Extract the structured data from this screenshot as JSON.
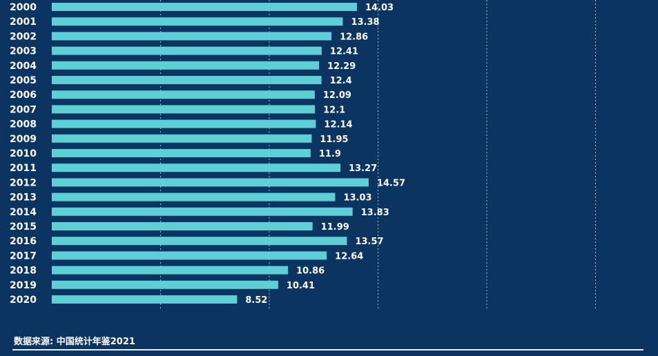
{
  "chart_data": {
    "type": "bar",
    "orientation": "horizontal",
    "categories": [
      "2000",
      "2001",
      "2002",
      "2003",
      "2004",
      "2005",
      "2006",
      "2007",
      "2008",
      "2009",
      "2010",
      "2011",
      "2012",
      "2013",
      "2014",
      "2015",
      "2016",
      "2017",
      "2018",
      "2019",
      "2020"
    ],
    "values": [
      14.03,
      13.38,
      12.86,
      12.41,
      12.29,
      12.4,
      12.09,
      12.1,
      12.14,
      11.95,
      11.9,
      13.27,
      14.57,
      13.03,
      13.83,
      11.99,
      13.57,
      12.64,
      10.86,
      10.41,
      8.52
    ],
    "value_labels": [
      "14.03",
      "13.38",
      "12.86",
      "12.41",
      "12.29",
      "12.4",
      "12.09",
      "12.1",
      "12.14",
      "11.95",
      "11.9",
      "13.27",
      "14.57",
      "13.03",
      "13.83",
      "11.99",
      "13.57",
      "12.64",
      "10.86",
      "10.41",
      "8.52"
    ],
    "xlim": [
      0,
      28
    ],
    "gridlines_at": [
      5,
      10,
      15,
      20,
      25
    ],
    "grid": true,
    "bar_color": "#5fcfd6",
    "background_color": "#0b3560",
    "source": "数据来源: 中国统计年鉴2021"
  }
}
